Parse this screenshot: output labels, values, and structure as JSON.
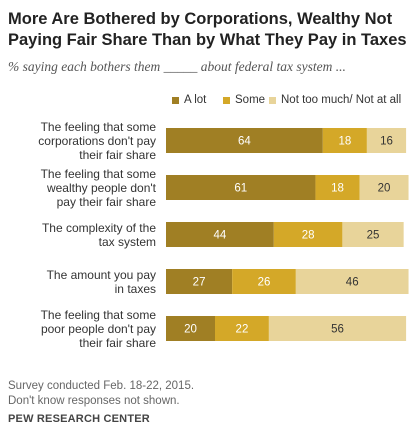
{
  "chart_data": {
    "type": "bar",
    "orientation": "horizontal",
    "stacked": true,
    "title": "More Are Bothered by Corporations, Wealthy Not Paying Fair Share Than by What They Pay in Taxes",
    "subtitle": "% saying each bothers them _____ about federal tax system ...",
    "categories": [
      "The feeling that some corporations don't pay their fair share",
      "The feeling that some wealthy people don't pay their fair share",
      "The complexity of the tax system",
      "The amount you pay in taxes",
      "The feeling that some poor people don't pay their fair share"
    ],
    "category_lines": [
      [
        "The feeling that some",
        "corporations don't pay",
        "their fair share"
      ],
      [
        "The feeling that some",
        "wealthy people don't",
        "pay their fair share"
      ],
      [
        "The complexity of the",
        "tax system"
      ],
      [
        "The amount you pay",
        "in taxes"
      ],
      [
        "The feeling that some",
        "poor people don't pay",
        "their fair share"
      ]
    ],
    "series": [
      {
        "name": "A lot",
        "color": "#a07f24",
        "label_color": "#ffffff",
        "values": [
          64,
          61,
          44,
          27,
          20
        ]
      },
      {
        "name": "Some",
        "color": "#d4a828",
        "label_color": "#ffffff",
        "values": [
          18,
          18,
          28,
          26,
          22
        ]
      },
      {
        "name": "Not too much/ Not at all",
        "color": "#e8d49a",
        "label_color": "#333333",
        "values": [
          16,
          20,
          25,
          46,
          56
        ]
      }
    ],
    "xlim": [
      0,
      100
    ],
    "grid": false,
    "legend_position": "top"
  },
  "notes": [
    "Survey conducted Feb. 18-22, 2015.",
    "Don't know responses not shown."
  ],
  "source": "PEW RESEARCH CENTER"
}
